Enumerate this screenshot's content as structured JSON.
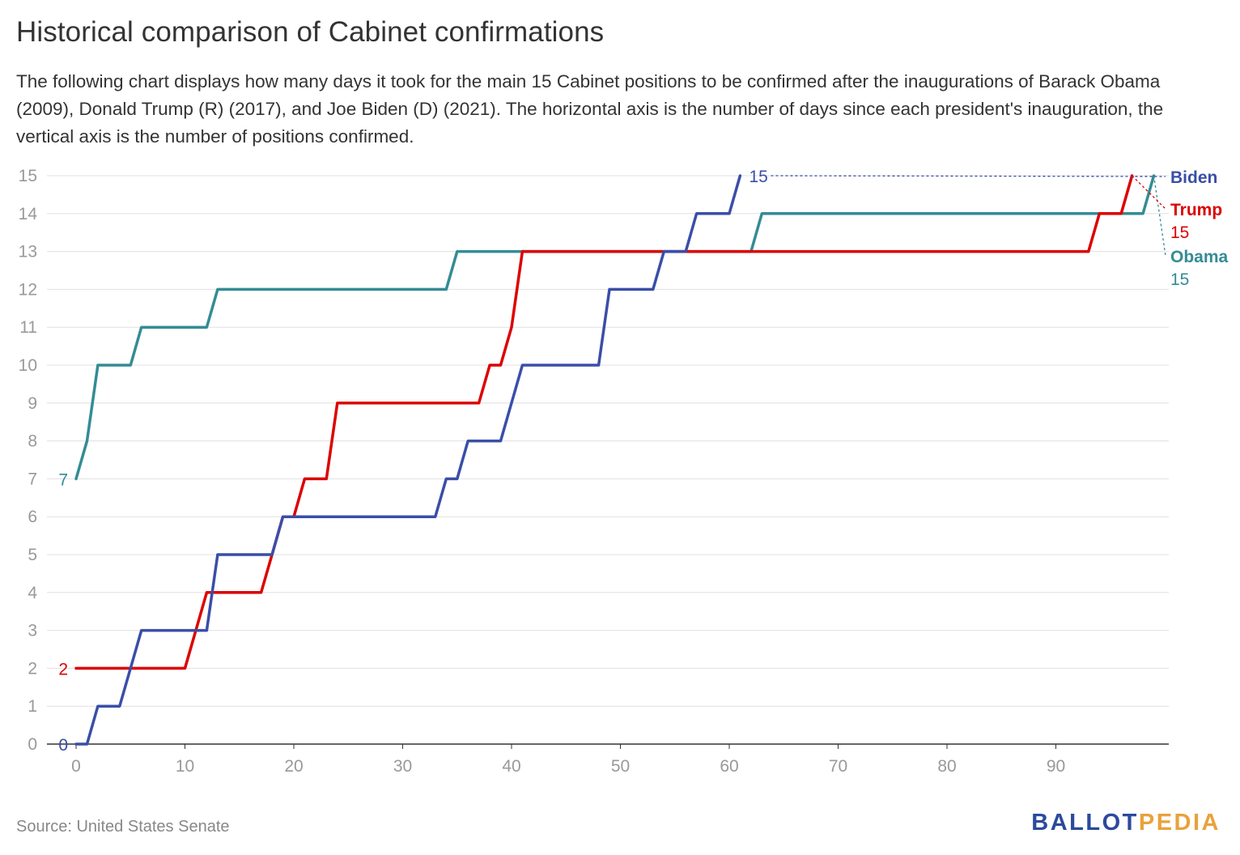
{
  "title": "Historical comparison of Cabinet confirmations",
  "subtitle": "The following chart displays how many days it took for the main 15 Cabinet positions to be confirmed after the inaugurations of Barack Obama (2009), Donald Trump (R) (2017), and Joe Biden (D) (2021). The horizontal axis is the number of days since each president's inauguration, the vertical axis is the number of positions confirmed.",
  "source": "Source: United States Senate",
  "logo": {
    "part1": "BALLOT",
    "part2": "PEDIA",
    "color1": "#2b4a9c",
    "color2": "#e9a23b"
  },
  "chart_data": {
    "type": "line",
    "title": "Historical comparison of Cabinet confirmations",
    "xlabel": "",
    "ylabel": "",
    "xlim": [
      0,
      100
    ],
    "ylim": [
      0,
      15
    ],
    "x_ticks": [
      0,
      10,
      20,
      30,
      40,
      50,
      60,
      70,
      80,
      90
    ],
    "y_ticks": [
      0,
      1,
      2,
      3,
      4,
      5,
      6,
      7,
      8,
      9,
      10,
      11,
      12,
      13,
      14,
      15
    ],
    "grid": true,
    "legend": "right-end labels",
    "series": [
      {
        "name": "Obama",
        "color": "#348c94",
        "start_label": "7",
        "end_label": "15",
        "x": [
          0,
          1,
          2,
          5,
          6,
          12,
          13,
          34,
          35,
          62,
          63,
          98,
          99
        ],
        "y": [
          7,
          8,
          10,
          10,
          11,
          11,
          12,
          12,
          13,
          13,
          14,
          14,
          15
        ]
      },
      {
        "name": "Trump",
        "color": "#dc0000",
        "start_label": "2",
        "end_label": "15",
        "x": [
          0,
          10,
          12,
          17,
          18,
          19,
          20,
          21,
          23,
          24,
          37,
          38,
          39,
          40,
          41,
          54,
          55,
          93,
          94,
          96,
          97
        ],
        "y": [
          2,
          2,
          4,
          4,
          5,
          6,
          6,
          7,
          7,
          9,
          9,
          10,
          10,
          11,
          13,
          13,
          13,
          13,
          14,
          14,
          15
        ]
      },
      {
        "name": "Biden",
        "color": "#3a4ea8",
        "start_label": "0",
        "end_label": "15",
        "x": [
          0,
          1,
          2,
          4,
          6,
          12,
          13,
          18,
          19,
          33,
          34,
          35,
          36,
          38,
          39,
          41,
          48,
          49,
          53,
          54,
          56,
          57,
          60,
          61
        ],
        "y": [
          0,
          0,
          1,
          1,
          3,
          3,
          5,
          5,
          6,
          6,
          7,
          7,
          8,
          8,
          8,
          10,
          10,
          12,
          12,
          13,
          13,
          14,
          14,
          15
        ]
      }
    ]
  }
}
